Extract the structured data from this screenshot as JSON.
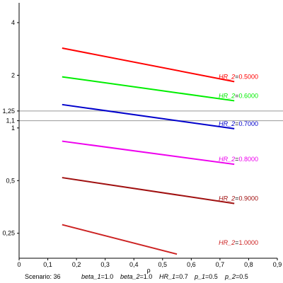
{
  "chart_data": {
    "type": "line",
    "xlabel": "ρ",
    "ylabel": "",
    "xlim": [
      0,
      0.9
    ],
    "ylim": [
      0.18,
      5.0
    ],
    "yscale": "log",
    "grid": false,
    "x_ticks": [
      {
        "value": 0.0,
        "label": "0"
      },
      {
        "value": 0.1,
        "label": "0,1"
      },
      {
        "value": 0.2,
        "label": "0,2"
      },
      {
        "value": 0.3,
        "label": "0,3"
      },
      {
        "value": 0.4,
        "label": "0,4"
      },
      {
        "value": 0.5,
        "label": "0,5"
      },
      {
        "value": 0.6,
        "label": "0,6"
      },
      {
        "value": 0.7,
        "label": "0,7"
      },
      {
        "value": 0.8,
        "label": "0,8"
      },
      {
        "value": 0.9,
        "label": "0,9"
      }
    ],
    "y_ticks": [
      {
        "value": 0.25,
        "label": "0,25"
      },
      {
        "value": 0.5,
        "label": "0,5"
      },
      {
        "value": 1.0,
        "label": "1"
      },
      {
        "value": 1.1,
        "label": "1,1"
      },
      {
        "value": 1.25,
        "label": "1,25"
      },
      {
        "value": 2.0,
        "label": "2"
      },
      {
        "value": 4.0,
        "label": "4"
      }
    ],
    "reference_lines": [
      1.1,
      1.25
    ],
    "series": [
      {
        "name_prefix": "HR_2",
        "name_value": "0.5000",
        "color": "#ff0000",
        "x": [
          0.15,
          0.75
        ],
        "y": [
          2.86,
          1.84
        ]
      },
      {
        "name_prefix": "HR_2",
        "name_value": "0.6000",
        "color": "#00ee00",
        "x": [
          0.15,
          0.75
        ],
        "y": [
          1.96,
          1.43
        ]
      },
      {
        "name_prefix": "HR_2",
        "name_value": "0.7000",
        "color": "#0000cc",
        "x": [
          0.15,
          0.75
        ],
        "y": [
          1.36,
          0.99
        ]
      },
      {
        "name_prefix": "HR_2",
        "name_value": "0.8000",
        "color": "#ee00ee",
        "x": [
          0.15,
          0.75
        ],
        "y": [
          0.84,
          0.62
        ]
      },
      {
        "name_prefix": "HR_2",
        "name_value": "0.9000",
        "color": "#a01010",
        "x": [
          0.15,
          0.75
        ],
        "y": [
          0.52,
          0.37
        ]
      },
      {
        "name_prefix": "HR_2",
        "name_value": "1.0000",
        "color": "#cc2222",
        "x": [
          0.15,
          0.55
        ],
        "y": [
          0.28,
          0.19
        ]
      }
    ]
  },
  "footer": {
    "scenario_label": "Scenario: 36",
    "params": [
      {
        "name": "beta_1",
        "value": "1.0"
      },
      {
        "name": "beta_2",
        "value": "1.0"
      },
      {
        "name": "HR_1",
        "value": "0.7"
      },
      {
        "name": "p_1",
        "value": "0.5"
      },
      {
        "name": "p_2",
        "value": "0.5"
      }
    ]
  }
}
